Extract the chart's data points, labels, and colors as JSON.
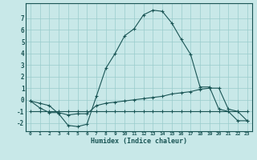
{
  "xlabel": "Humidex (Indice chaleur)",
  "bg_color": "#c8e8e8",
  "grid_color": "#99cccc",
  "line_color": "#1a5555",
  "xlim": [
    -0.5,
    23.5
  ],
  "ylim": [
    -2.7,
    8.3
  ],
  "yticks": [
    -2,
    -1,
    0,
    1,
    2,
    3,
    4,
    5,
    6,
    7
  ],
  "xtick_labels": [
    "0",
    "1",
    "2",
    "3",
    "4",
    "5",
    "6",
    "7",
    "8",
    "9",
    "10",
    "11",
    "12",
    "13",
    "14",
    "15",
    "16",
    "17",
    "18",
    "19",
    "20",
    "21",
    "22",
    "23"
  ],
  "x_s1": [
    0,
    1,
    2,
    3,
    4,
    5,
    6,
    7,
    8,
    9,
    10,
    11,
    12,
    13,
    14,
    15,
    16,
    17,
    18,
    19,
    20,
    21,
    22,
    23
  ],
  "y_s1": [
    -0.1,
    -0.3,
    -0.5,
    -1.2,
    -2.2,
    -2.3,
    -2.1,
    0.3,
    2.7,
    4.0,
    5.5,
    6.1,
    7.3,
    7.7,
    7.6,
    6.6,
    5.2,
    3.9,
    1.1,
    1.1,
    -0.8,
    -1.0,
    -1.8,
    -1.8
  ],
  "x_s2": [
    0,
    1,
    2,
    3,
    4,
    5,
    6,
    7,
    8,
    9,
    10,
    11,
    12,
    13,
    14,
    15,
    16,
    17,
    18,
    19,
    20,
    21,
    22,
    23
  ],
  "y_s2": [
    -0.1,
    -0.7,
    -1.1,
    -1.1,
    -1.3,
    -1.2,
    -1.2,
    -0.5,
    -0.3,
    -0.2,
    -0.1,
    0.0,
    0.1,
    0.2,
    0.3,
    0.5,
    0.6,
    0.7,
    0.9,
    1.0,
    1.0,
    -0.8,
    -1.0,
    -1.8
  ],
  "x_s3": [
    0,
    1,
    2,
    3,
    4,
    5,
    6,
    7,
    8,
    9,
    10,
    11,
    12,
    13,
    14,
    15,
    16,
    17,
    18,
    19,
    20,
    21,
    22,
    23
  ],
  "y_s3": [
    -1.0,
    -1.0,
    -1.0,
    -1.0,
    -1.0,
    -1.0,
    -1.0,
    -1.0,
    -1.0,
    -1.0,
    -1.0,
    -1.0,
    -1.0,
    -1.0,
    -1.0,
    -1.0,
    -1.0,
    -1.0,
    -1.0,
    -1.0,
    -1.0,
    -1.0,
    -1.0,
    -1.0
  ]
}
